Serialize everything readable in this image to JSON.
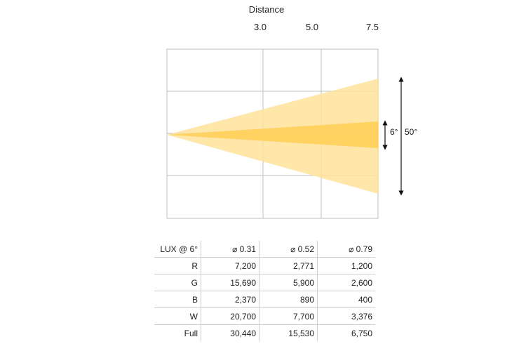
{
  "distance": {
    "title": "Distance",
    "marks": [
      "3.0",
      "5.0",
      "7.5"
    ]
  },
  "angles": {
    "narrow": "6°",
    "wide": "50°"
  },
  "colors": {
    "wide_beam": "#ffe39a",
    "narrow_beam": "#ffcf5a",
    "grid": "#bfbfbf"
  },
  "table": {
    "header": [
      "LUX @ 6°",
      "⌀ 0.31",
      "⌀ 0.52",
      "⌀ 0.79"
    ],
    "rows": [
      {
        "label": "R",
        "values": [
          "7,200",
          "2,771",
          "1,200"
        ]
      },
      {
        "label": "G",
        "values": [
          "15,690",
          "5,900",
          "2,600"
        ]
      },
      {
        "label": "B",
        "values": [
          "2,370",
          "890",
          "400"
        ]
      },
      {
        "label": "W",
        "values": [
          "20,700",
          "7,700",
          "3,376"
        ]
      },
      {
        "label": "Full",
        "values": [
          "30,440",
          "15,530",
          "6,750"
        ]
      }
    ]
  }
}
